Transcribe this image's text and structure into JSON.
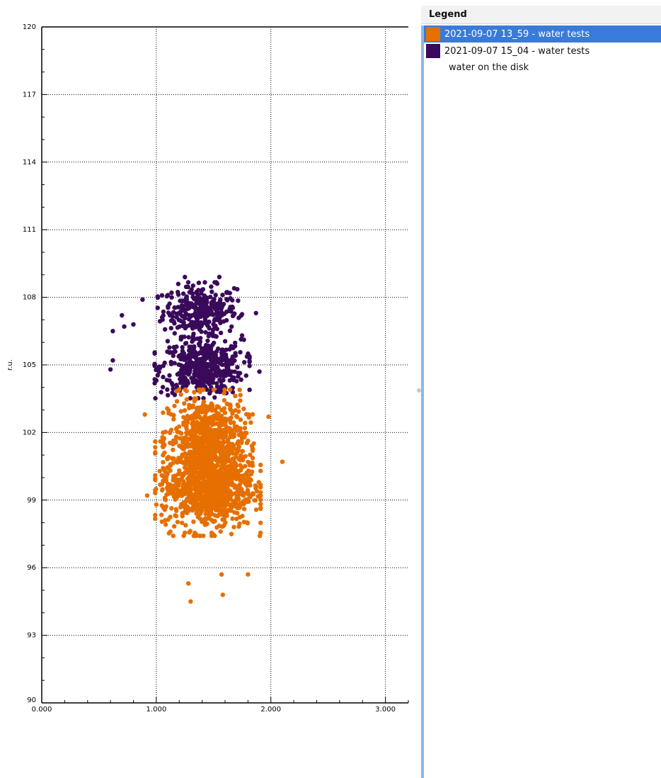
{
  "chart_data": {
    "type": "scatter",
    "title": "",
    "xlabel": "",
    "ylabel": "r.u.",
    "xlim": [
      0,
      3.2
    ],
    "ylim": [
      90,
      120
    ],
    "x_ticks": [
      "0.000",
      "1.000",
      "2.000",
      "3.000"
    ],
    "y_ticks": [
      "90",
      "93",
      "96",
      "99",
      "102",
      "105",
      "108",
      "111",
      "114",
      "117",
      "120"
    ],
    "grid": "dotted, at labeled ticks",
    "legend_position": "right panel",
    "series": [
      {
        "name": "2021-09-07 13_59 - water tests",
        "color": "#e66f00",
        "clusters": [
          {
            "x_center": 1.45,
            "y_center": 101.6,
            "x_spread": 0.17,
            "y_spread": 1.0,
            "count": 700
          },
          {
            "x_center": 1.45,
            "y_center": 99.6,
            "x_spread": 0.2,
            "y_spread": 0.95,
            "count": 900
          }
        ],
        "outliers": [
          [
            0.9,
            102.8
          ],
          [
            0.92,
            99.2
          ],
          [
            1.0,
            98.8
          ],
          [
            1.28,
            95.3
          ],
          [
            1.3,
            94.5
          ],
          [
            1.58,
            94.8
          ],
          [
            1.57,
            95.7
          ],
          [
            1.8,
            95.7
          ],
          [
            2.1,
            100.7
          ],
          [
            1.98,
            102.7
          ]
        ]
      },
      {
        "name": "2021-09-07 15_04 - water tests",
        "color": "#3a0a5a",
        "clusters": [
          {
            "x_center": 1.38,
            "y_center": 107.4,
            "x_spread": 0.16,
            "y_spread": 0.55,
            "count": 320
          },
          {
            "x_center": 1.4,
            "y_center": 104.9,
            "x_spread": 0.18,
            "y_spread": 0.6,
            "count": 480
          }
        ],
        "outliers": [
          [
            0.62,
            106.5
          ],
          [
            0.62,
            105.2
          ],
          [
            0.6,
            104.8
          ],
          [
            0.7,
            107.2
          ],
          [
            0.72,
            106.7
          ],
          [
            0.8,
            106.8
          ],
          [
            0.88,
            107.9
          ],
          [
            1.25,
            108.9
          ],
          [
            1.55,
            108.9
          ],
          [
            1.68,
            108.4
          ],
          [
            1.87,
            107.3
          ],
          [
            1.9,
            104.7
          ]
        ]
      }
    ]
  },
  "legend": {
    "header": "Legend",
    "items": [
      {
        "label": "2021-09-07 13_59 - water tests",
        "color": "#e66f00",
        "selected": true
      },
      {
        "label": "2021-09-07 15_04 - water tests",
        "color": "#3a0a5a",
        "selected": false
      }
    ],
    "note": "water on the disk"
  }
}
